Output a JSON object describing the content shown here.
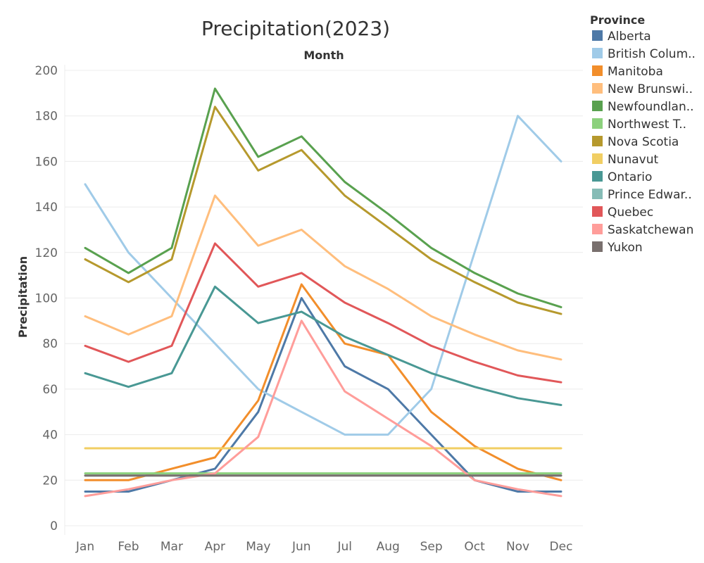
{
  "chart_data": {
    "type": "line",
    "title": "Precipitation(2023)",
    "subtitle": "Month",
    "xlabel": "",
    "ylabel": "Precipitation",
    "ylim": [
      0,
      200
    ],
    "yticks": [
      0,
      20,
      40,
      60,
      80,
      100,
      120,
      140,
      160,
      180,
      200
    ],
    "grid": true,
    "legend_position": "right",
    "legend_title": "Province",
    "categories": [
      "Jan",
      "Feb",
      "Mar",
      "Apr",
      "May",
      "Jun",
      "Jul",
      "Aug",
      "Sep",
      "Oct",
      "Nov",
      "Dec"
    ],
    "series": [
      {
        "name": "Alberta",
        "legend_label": "Alberta",
        "color": "#4e79a7",
        "values": [
          15,
          15,
          20,
          25,
          50,
          100,
          70,
          60,
          40,
          20,
          15,
          15
        ]
      },
      {
        "name": "British Columbia",
        "legend_label": "British Colum..",
        "color": "#a0cbe8",
        "values": [
          150,
          120,
          100,
          80,
          60,
          50,
          40,
          40,
          60,
          120,
          180,
          160
        ]
      },
      {
        "name": "Manitoba",
        "legend_label": "Manitoba",
        "color": "#f28e2b",
        "values": [
          20,
          20,
          25,
          30,
          55,
          106,
          80,
          75,
          50,
          35,
          25,
          20
        ]
      },
      {
        "name": "New Brunswick",
        "legend_label": "New Brunswi..",
        "color": "#ffbe7d",
        "values": [
          92,
          84,
          92,
          145,
          123,
          130,
          114,
          104,
          92,
          84,
          77,
          73
        ]
      },
      {
        "name": "Newfoundland",
        "legend_label": "Newfoundlan..",
        "color": "#59a14f",
        "values": [
          122,
          111,
          122,
          192,
          162,
          171,
          151,
          137,
          122,
          111,
          102,
          96
        ]
      },
      {
        "name": "Northwest Territories",
        "legend_label": "Northwest T..",
        "color": "#8cd17d",
        "values": [
          23,
          23,
          23,
          23,
          23,
          23,
          23,
          23,
          23,
          23,
          23,
          23
        ]
      },
      {
        "name": "Nova Scotia",
        "legend_label": "Nova Scotia",
        "color": "#b6992d",
        "values": [
          117,
          107,
          117,
          184,
          156,
          165,
          145,
          131,
          117,
          107,
          98,
          93
        ]
      },
      {
        "name": "Nunavut",
        "legend_label": "Nunavut",
        "color": "#f1ce63",
        "values": [
          34,
          34,
          34,
          34,
          34,
          34,
          34,
          34,
          34,
          34,
          34,
          34
        ]
      },
      {
        "name": "Ontario",
        "legend_label": "Ontario",
        "color": "#499894",
        "values": [
          67,
          61,
          67,
          105,
          89,
          94,
          83,
          75,
          67,
          61,
          56,
          53
        ]
      },
      {
        "name": "Prince Edward Island",
        "legend_label": "Prince Edwar..",
        "color": "#86bcb6",
        "values": [
          22,
          22,
          22,
          22,
          22,
          22,
          22,
          22,
          22,
          22,
          22,
          22
        ]
      },
      {
        "name": "Quebec",
        "legend_label": "Quebec",
        "color": "#e15759",
        "values": [
          79,
          72,
          79,
          124,
          105,
          111,
          98,
          89,
          79,
          72,
          66,
          63
        ]
      },
      {
        "name": "Saskatchewan",
        "legend_label": "Saskatchewan",
        "color": "#ff9d9a",
        "values": [
          13,
          16,
          20,
          23,
          39,
          90,
          59,
          47,
          35,
          20,
          16,
          13
        ]
      },
      {
        "name": "Yukon",
        "legend_label": "Yukon",
        "color": "#79706e",
        "values": [
          22,
          22,
          22,
          22,
          22,
          22,
          22,
          22,
          22,
          22,
          22,
          22
        ]
      }
    ]
  }
}
